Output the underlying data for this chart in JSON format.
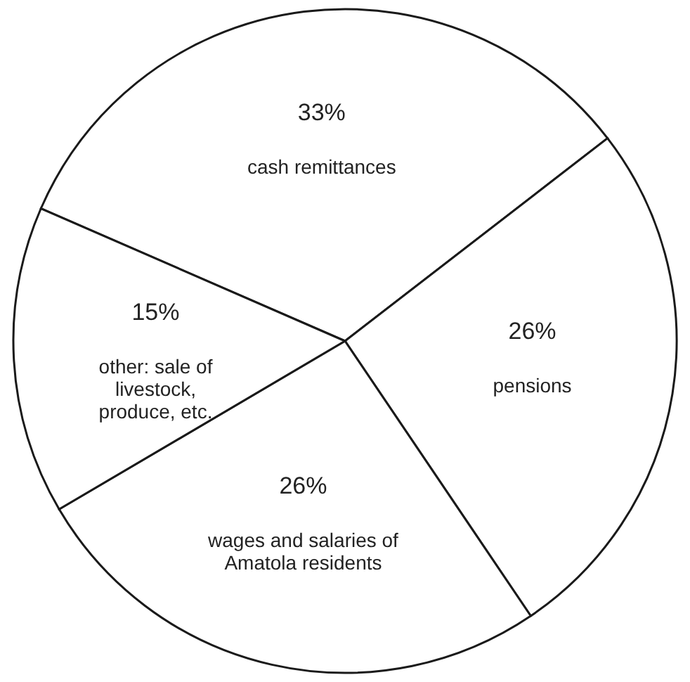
{
  "chart_data": {
    "type": "pie",
    "categories": [
      "cash remittances",
      "pensions",
      "wages and salaries of\nAmatola residents",
      "other: sale of\nlivestock,\nproduce, etc."
    ],
    "values": [
      33,
      26,
      26,
      15
    ],
    "value_labels": [
      "33%",
      "26%",
      "26%",
      "15%"
    ],
    "colors": [
      "#ffffff",
      "#ffffff",
      "#ffffff",
      "#ffffff"
    ]
  }
}
